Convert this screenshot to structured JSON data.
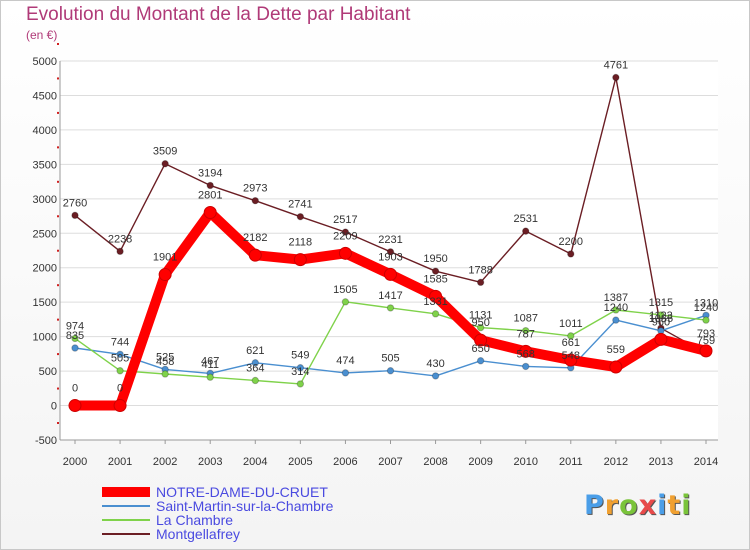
{
  "header": {
    "title": "Evolution du Montant de la Dette par Habitant",
    "subtitle": "(en €)"
  },
  "logo": {
    "text": "Proxiti",
    "letter_colors": [
      "#4a9ee8",
      "#f0a030",
      "#7ac43a",
      "#e84a4a",
      "#4a9ee8",
      "#f0a030",
      "#7ac43a"
    ]
  },
  "chart_data": {
    "type": "line",
    "title": "Evolution du Montant de la Dette par Habitant",
    "subtitle": "(en €)",
    "xlabel": "",
    "ylabel": "",
    "x": [
      "2000",
      "2001",
      "2002",
      "2003",
      "2004",
      "2005",
      "2006",
      "2007",
      "2008",
      "2009",
      "2010",
      "2011",
      "2012",
      "2013",
      "2014"
    ],
    "ylim": [
      -500,
      5000
    ],
    "yticks": [
      "-500",
      "0",
      "500",
      "1000",
      "1500",
      "2000",
      "2500",
      "3000",
      "3500",
      "4000",
      "4500",
      "5000"
    ],
    "grid": "horizontal",
    "legend": "bottom-left",
    "series": [
      {
        "name": "NOTRE-DAME-DU-CRUET",
        "color": "#ff0000",
        "values": [
          0,
          0,
          1901,
          2801,
          2182,
          2118,
          2209,
          1903,
          1585,
          950,
          787,
          661,
          559,
          960,
          793
        ],
        "labels": [
          "0",
          "0",
          "1901",
          "2801",
          "2182",
          "2118",
          "2209",
          "1903",
          "1585",
          "950",
          "787",
          "661",
          "559",
          "960",
          "793"
        ]
      },
      {
        "name": "Saint-Martin-sur-la-Chambre",
        "color": "#4a8fd0",
        "values": [
          835,
          744,
          525,
          467,
          621,
          549,
          474,
          505,
          430,
          650,
          568,
          548,
          1240,
          1085,
          1310
        ],
        "labels": [
          "835",
          "744",
          "525",
          "467",
          "621",
          "549",
          "474",
          "505",
          "430",
          "650",
          "568",
          "548",
          "1240",
          "1085",
          "1310"
        ]
      },
      {
        "name": "La Chambre",
        "color": "#7fd24a",
        "values": [
          974,
          505,
          458,
          411,
          364,
          314,
          1505,
          1417,
          1331,
          1131,
          1087,
          1011,
          1387,
          1315,
          1240
        ],
        "labels": [
          "974",
          "505",
          "458",
          "411",
          "364",
          "314",
          "1505",
          "1417",
          "1331",
          "1131",
          "1087",
          "1011",
          "1387",
          "1315",
          "1240"
        ]
      },
      {
        "name": "Montgellafrey",
        "color": "#6b1e24",
        "values": [
          2760,
          2238,
          3509,
          3194,
          2973,
          2741,
          2517,
          2231,
          1950,
          1788,
          2531,
          2200,
          4761,
          1123,
          759
        ],
        "labels": [
          "2760",
          "2238",
          "3509",
          "3194",
          "2973",
          "2741",
          "2517",
          "2231",
          "1950",
          "1788",
          "2531",
          "2200",
          "4761",
          "1123",
          "759"
        ]
      }
    ]
  }
}
